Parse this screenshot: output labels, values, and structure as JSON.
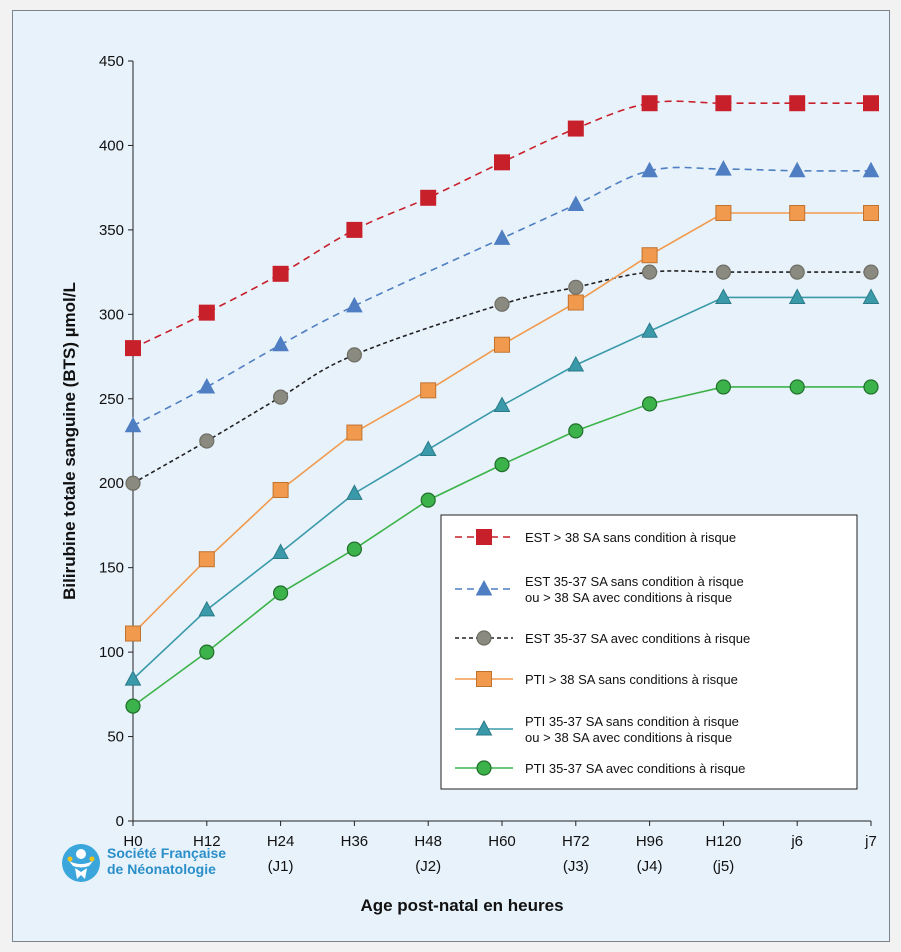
{
  "colors": {
    "background": "#e8f2fb",
    "red": "#c8202a",
    "blue": "#4f7fc2",
    "gray": "#8a8a80",
    "orange": "#f19a4e",
    "teal": "#3a9aaa",
    "green": "#3cb34a"
  },
  "logo": {
    "name": "Société Française de Néonatologie",
    "line1": "Société Française",
    "line2": "de Néonatologie",
    "icon": "baby-figure-icon"
  },
  "chart_data": {
    "type": "line",
    "xlabel": "Age post-natal en heures",
    "ylabel": "Bilirubine totale sanguine (BTS) µmol/L",
    "ylim": [
      0,
      450
    ],
    "yticks": [
      0,
      50,
      100,
      150,
      200,
      250,
      300,
      350,
      400,
      450
    ],
    "categories": [
      "H0",
      "H12",
      "H24",
      "H36",
      "H48",
      "H60",
      "H72",
      "H96",
      "H120",
      "j6",
      "j7"
    ],
    "category_sublabels": [
      "",
      "",
      "(J1)",
      "",
      "(J2)",
      "",
      "(J3)",
      "(J4)",
      "(j5)",
      "",
      ""
    ],
    "grid": false,
    "legend_position": "bottom-right",
    "series": [
      {
        "name": "EST > 38 SA sans condition à risque",
        "name_lines": [
          "EST > 38 SA sans condition à risque"
        ],
        "marker": "square",
        "line": "dashed",
        "color": "#c8202a",
        "markerStroke": "#c8202a",
        "values": [
          280,
          301,
          324,
          350,
          369,
          390,
          410,
          425,
          425,
          425,
          425
        ]
      },
      {
        "name": "EST 35-37 SA sans condition à risque ou > 38 SA avec conditions à risque",
        "name_lines": [
          "EST 35-37 SA sans condition à risque",
          "ou > 38 SA avec conditions à risque"
        ],
        "marker": "triangle",
        "line": "dashed",
        "color": "#4f7fc2",
        "markerStroke": "#4f7fc2",
        "values": [
          234,
          257,
          282,
          305,
          null,
          345,
          365,
          385,
          386,
          385,
          385
        ]
      },
      {
        "name": "EST 35-37 SA avec conditions à risque",
        "name_lines": [
          "EST 35-37 SA avec conditions à risque"
        ],
        "marker": "circle",
        "line": "dotted",
        "color": "#8a8a80",
        "lineColor": "#222222",
        "markerStroke": "#6e6e64",
        "values": [
          200,
          225,
          251,
          276,
          null,
          306,
          316,
          325,
          325,
          325,
          325
        ]
      },
      {
        "name": "PTI > 38 SA sans conditions à risque",
        "name_lines": [
          "PTI > 38 SA sans conditions à risque"
        ],
        "marker": "square",
        "line": "solid",
        "color": "#f19a4e",
        "markerStroke": "#c0732e",
        "values": [
          111,
          155,
          196,
          230,
          255,
          282,
          307,
          335,
          360,
          360,
          360
        ]
      },
      {
        "name": "PTI 35-37 SA sans condition à risque ou > 38 SA avec conditions à risque",
        "name_lines": [
          "PTI 35-37 SA sans condition à risque",
          "ou > 38 SA avec conditions à risque"
        ],
        "marker": "triangle",
        "line": "solid",
        "color": "#3a9aaa",
        "markerStroke": "#2a7a88",
        "values": [
          84,
          125,
          159,
          194,
          220,
          246,
          270,
          290,
          310,
          310,
          310
        ]
      },
      {
        "name": "PTI 35-37 SA avec conditions à risque",
        "name_lines": [
          "PTI 35-37 SA avec conditions à risque"
        ],
        "marker": "circle",
        "line": "solid",
        "color": "#3cb34a",
        "markerStroke": "#1f6e2a",
        "values": [
          68,
          100,
          135,
          161,
          190,
          211,
          231,
          247,
          257,
          257,
          257
        ]
      }
    ]
  }
}
